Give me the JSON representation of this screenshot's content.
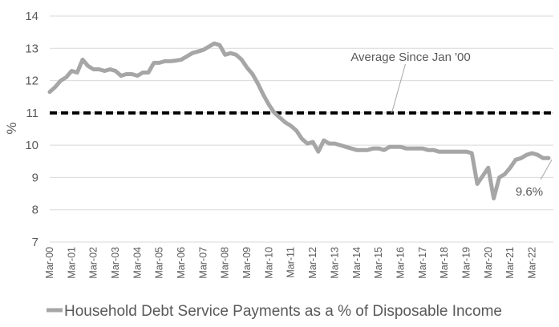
{
  "chart_data": {
    "type": "line",
    "ylabel": "%",
    "ylim": [
      7,
      14
    ],
    "yticks": [
      "7",
      "8",
      "9",
      "10",
      "11",
      "12",
      "13",
      "14"
    ],
    "xtick_labels": [
      "Mar-00",
      "Mar-01",
      "Mar-02",
      "Mar-03",
      "Mar-04",
      "Mar-05",
      "Mar-06",
      "Mar-07",
      "Mar-08",
      "Mar-09",
      "Mar-10",
      "Mar-11",
      "Mar-12",
      "Mar-13",
      "Mar-14",
      "Mar-15",
      "Mar-16",
      "Mar-17",
      "Mar-18",
      "Mar-19",
      "Mar-20",
      "Mar-21",
      "Mar-22"
    ],
    "grid": "horizontal",
    "legend_position": "bottom",
    "series": [
      {
        "name": "Household Debt Service Payments as a % of Disposable Income",
        "color": "#a6a6a6",
        "x": [
          2000.0,
          2000.25,
          2000.5,
          2000.75,
          2001.0,
          2001.25,
          2001.5,
          2001.75,
          2002.0,
          2002.25,
          2002.5,
          2002.75,
          2003.0,
          2003.25,
          2003.5,
          2003.75,
          2004.0,
          2004.25,
          2004.5,
          2004.75,
          2005.0,
          2005.25,
          2005.5,
          2005.75,
          2006.0,
          2006.25,
          2006.5,
          2006.75,
          2007.0,
          2007.25,
          2007.5,
          2007.75,
          2008.0,
          2008.25,
          2008.5,
          2008.75,
          2009.0,
          2009.25,
          2009.5,
          2009.75,
          2010.0,
          2010.25,
          2010.5,
          2010.75,
          2011.0,
          2011.25,
          2011.5,
          2011.75,
          2012.0,
          2012.25,
          2012.5,
          2012.75,
          2013.0,
          2013.25,
          2013.5,
          2013.75,
          2014.0,
          2014.25,
          2014.5,
          2014.75,
          2015.0,
          2015.25,
          2015.5,
          2015.75,
          2016.0,
          2016.25,
          2016.5,
          2016.75,
          2017.0,
          2017.25,
          2017.5,
          2017.75,
          2018.0,
          2018.25,
          2018.5,
          2018.75,
          2019.0,
          2019.25,
          2019.5,
          2019.75,
          2020.0,
          2020.25,
          2020.5,
          2020.75,
          2021.0,
          2021.25,
          2021.5,
          2021.75,
          2022.0,
          2022.25,
          2022.5,
          2022.75
        ],
        "values": [
          11.65,
          11.8,
          12.0,
          12.1,
          12.3,
          12.25,
          12.65,
          12.45,
          12.35,
          12.35,
          12.3,
          12.35,
          12.3,
          12.15,
          12.2,
          12.2,
          12.15,
          12.25,
          12.25,
          12.55,
          12.55,
          12.6,
          12.6,
          12.62,
          12.65,
          12.75,
          12.85,
          12.9,
          12.95,
          13.05,
          13.15,
          13.1,
          12.8,
          12.85,
          12.8,
          12.65,
          12.4,
          12.2,
          11.9,
          11.55,
          11.25,
          11.0,
          10.85,
          10.7,
          10.6,
          10.45,
          10.2,
          10.05,
          10.1,
          9.8,
          10.15,
          10.05,
          10.05,
          10.0,
          9.95,
          9.9,
          9.85,
          9.85,
          9.85,
          9.9,
          9.9,
          9.85,
          9.95,
          9.95,
          9.95,
          9.9,
          9.9,
          9.9,
          9.9,
          9.85,
          9.85,
          9.8,
          9.8,
          9.8,
          9.8,
          9.8,
          9.8,
          9.75,
          8.8,
          9.05,
          9.3,
          8.35,
          9.0,
          9.1,
          9.3,
          9.55,
          9.6,
          9.7,
          9.75,
          9.7,
          9.6,
          9.6
        ]
      },
      {
        "name": "Average Since Jan '00",
        "color": "#000000",
        "style": "dashed",
        "value": 11.0
      }
    ],
    "annotations": [
      {
        "text": "Average Since Jan '00",
        "x": 2015.6,
        "y": 11.0
      },
      {
        "text": "9.6%",
        "x": 2022.9,
        "y": 9.6
      }
    ]
  }
}
